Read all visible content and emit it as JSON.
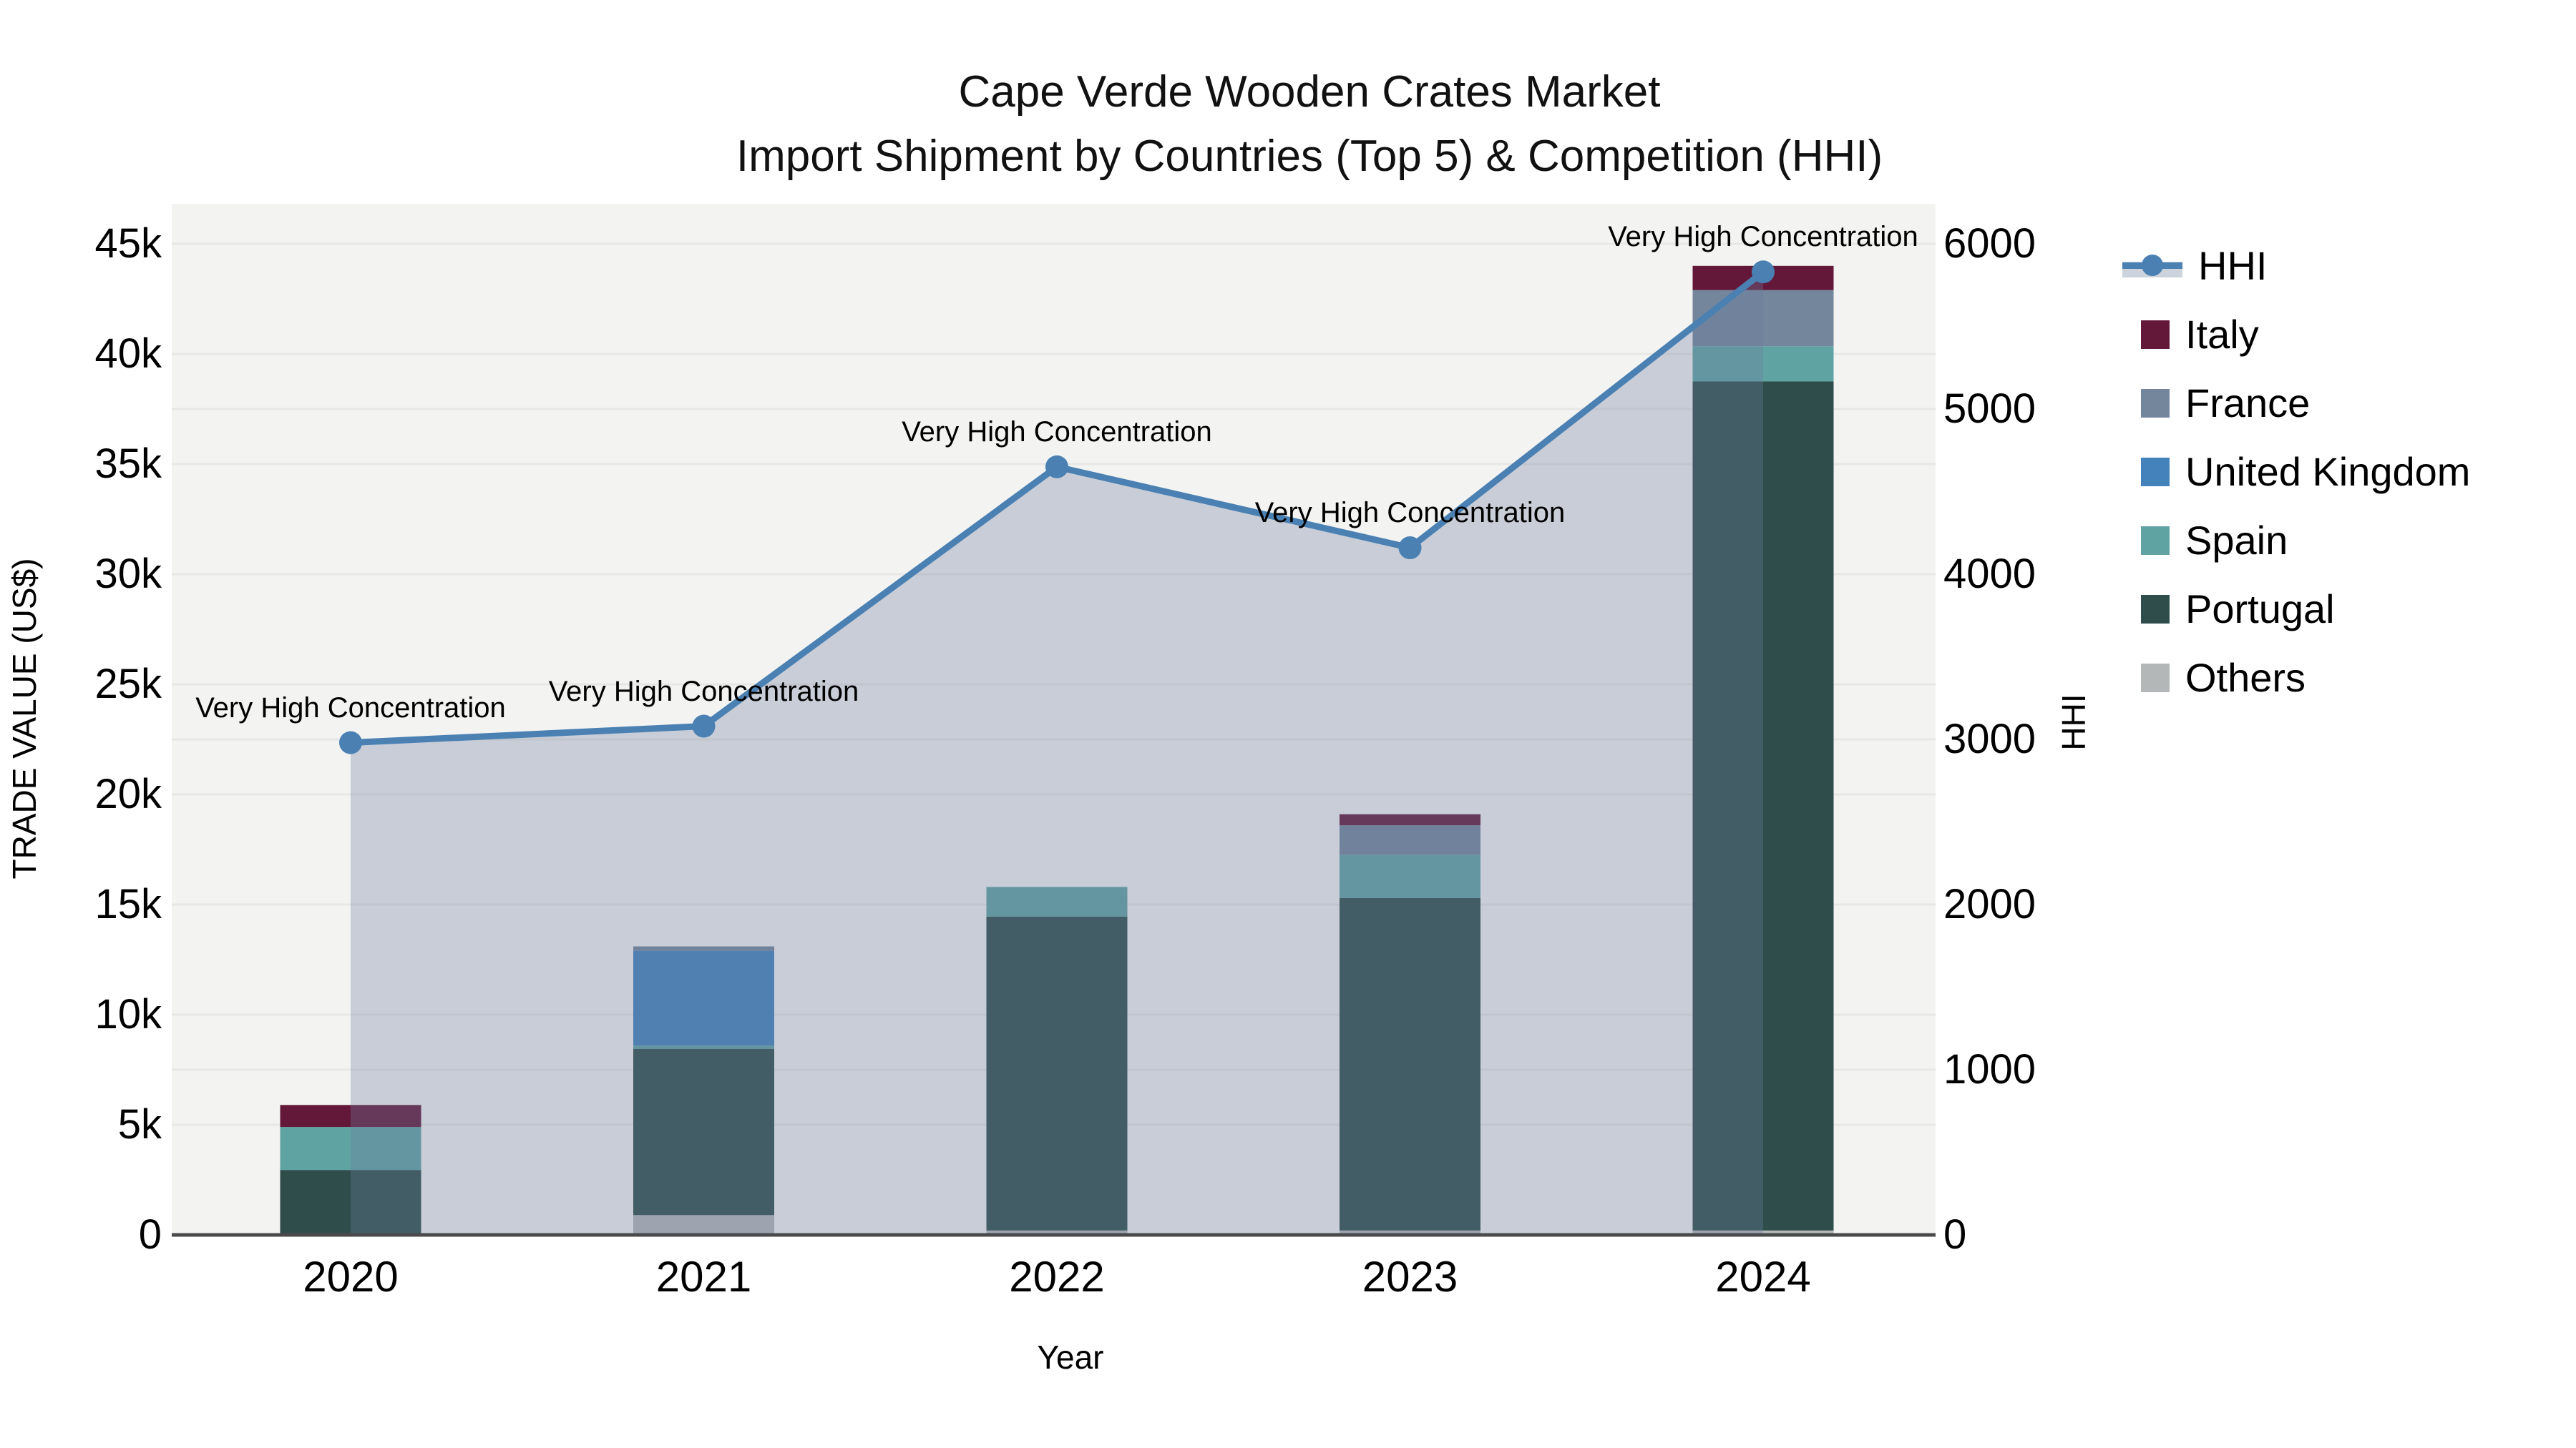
{
  "title": {
    "line1": "Cape Verde Wooden Crates Market",
    "line2": "Import Shipment by Countries (Top 5) & Competition (HHI)"
  },
  "axes": {
    "x": {
      "title": "Year",
      "ticks": [
        "2020",
        "2021",
        "2022",
        "2023",
        "2024"
      ]
    },
    "y_left": {
      "title": "TRADE VALUE (US$)",
      "tick_labels": [
        "0",
        "5k",
        "10k",
        "15k",
        "20k",
        "25k",
        "30k",
        "35k",
        "40k",
        "45k"
      ],
      "tick_values": [
        0,
        5000,
        10000,
        15000,
        20000,
        25000,
        30000,
        35000,
        40000,
        45000
      ]
    },
    "y_right": {
      "title": "HHI",
      "tick_labels": [
        "0",
        "1000",
        "2000",
        "3000",
        "4000",
        "5000",
        "6000"
      ],
      "tick_values": [
        0,
        1000,
        2000,
        3000,
        4000,
        5000,
        6000
      ]
    }
  },
  "legend": {
    "items": [
      {
        "label": "HHI",
        "swatch": "line",
        "color": "#4A80B2"
      },
      {
        "label": "Italy",
        "swatch": "square",
        "color": "#631839"
      },
      {
        "label": "France",
        "swatch": "square",
        "color": "#74869B"
      },
      {
        "label": "United Kingdom",
        "swatch": "square",
        "color": "#4382BA"
      },
      {
        "label": "Spain",
        "swatch": "square",
        "color": "#5FA3A2"
      },
      {
        "label": "Portugal",
        "swatch": "square",
        "color": "#2F4E4B"
      },
      {
        "label": "Others",
        "swatch": "square",
        "color": "#B4B7B7"
      }
    ]
  },
  "colors": {
    "plot_bg": "#F3F3F2",
    "grid": "#E7E7E5",
    "axis_line": "#4A4A4A",
    "hhi_line": "#4A80B2",
    "hhi_fill": "rgba(108,124,160,0.32)"
  },
  "chart_data": {
    "type": "combo-stacked-bar-line",
    "categories": [
      "2020",
      "2021",
      "2022",
      "2023",
      "2024"
    ],
    "bar_series_bottom_to_top": [
      {
        "name": "Others",
        "color": "#B4B7B7",
        "values": [
          0,
          900,
          200,
          200,
          200
        ]
      },
      {
        "name": "Portugal",
        "color": "#2F4E4B",
        "values": [
          2950,
          7550,
          14250,
          15100,
          38550
        ]
      },
      {
        "name": "Spain",
        "color": "#5FA3A2",
        "values": [
          1950,
          150,
          1350,
          1950,
          1600
        ]
      },
      {
        "name": "United Kingdom",
        "color": "#4382BA",
        "values": [
          0,
          4300,
          0,
          0,
          0
        ]
      },
      {
        "name": "France",
        "color": "#74869B",
        "values": [
          0,
          200,
          0,
          1350,
          2550
        ]
      },
      {
        "name": "Italy",
        "color": "#631839",
        "values": [
          1000,
          0,
          0,
          500,
          1100
        ]
      }
    ],
    "bar_totals": [
      5900,
      13100,
      15800,
      19100,
      44000
    ],
    "line_series": {
      "name": "HHI",
      "color": "#4A80B2",
      "values": [
        2980,
        3080,
        4650,
        4160,
        5830
      ],
      "fill_to_zero": true,
      "point_annotations": [
        "Very High Concentration",
        "Very High Concentration",
        "Very High Concentration",
        "Very High Concentration",
        "Very High Concentration"
      ]
    },
    "title": "Cape Verde Wooden Crates Market — Import Shipment by Countries (Top 5) & Competition (HHI)",
    "xlabel": "Year",
    "ylabel_left": "TRADE VALUE (US$)",
    "ylabel_right": "HHI",
    "ylim_left": [
      0,
      45000
    ],
    "ylim_right": [
      0,
      6000
    ],
    "grid": true,
    "legend_position": "right"
  }
}
